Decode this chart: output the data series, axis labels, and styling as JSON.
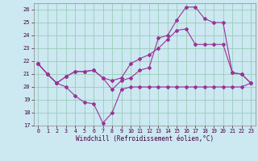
{
  "xlabel": "Windchill (Refroidissement éolien,°C)",
  "background_color": "#cce8f0",
  "grid_color": "#99ccbb",
  "line_color": "#993399",
  "xlim": [
    -0.5,
    23.5
  ],
  "ylim": [
    17,
    26.5
  ],
  "yticks": [
    17,
    18,
    19,
    20,
    21,
    22,
    23,
    24,
    25,
    26
  ],
  "xticks": [
    0,
    1,
    2,
    3,
    4,
    5,
    6,
    7,
    8,
    9,
    10,
    11,
    12,
    13,
    14,
    15,
    16,
    17,
    18,
    19,
    20,
    21,
    22,
    23
  ],
  "series1_x": [
    0,
    1,
    2,
    3,
    4,
    5,
    6,
    7,
    8,
    9,
    10,
    11,
    12,
    13,
    14,
    15,
    16,
    17,
    18,
    19,
    20,
    21,
    22,
    23
  ],
  "series1_y": [
    21.8,
    21.0,
    20.3,
    20.0,
    19.3,
    18.8,
    18.7,
    17.2,
    18.0,
    19.8,
    20.0,
    20.0,
    20.0,
    20.0,
    20.0,
    20.0,
    20.0,
    20.0,
    20.0,
    20.0,
    20.0,
    20.0,
    20.0,
    20.3
  ],
  "series2_x": [
    0,
    1,
    2,
    3,
    4,
    5,
    6,
    7,
    8,
    9,
    10,
    11,
    12,
    13,
    14,
    15,
    16,
    17,
    18,
    19,
    20,
    21,
    22,
    23
  ],
  "series2_y": [
    21.8,
    21.0,
    20.3,
    20.8,
    21.2,
    21.2,
    21.3,
    20.7,
    19.8,
    20.5,
    20.7,
    21.3,
    21.5,
    23.8,
    24.0,
    25.2,
    26.2,
    26.2,
    25.3,
    25.0,
    25.0,
    21.1,
    21.0,
    20.3
  ],
  "series3_x": [
    0,
    1,
    2,
    3,
    4,
    5,
    6,
    7,
    8,
    9,
    10,
    11,
    12,
    13,
    14,
    15,
    16,
    17,
    18,
    19,
    20,
    21,
    22,
    23
  ],
  "series3_y": [
    21.8,
    21.0,
    20.3,
    20.8,
    21.2,
    21.2,
    21.3,
    20.7,
    20.5,
    20.7,
    21.8,
    22.2,
    22.5,
    23.0,
    23.7,
    24.4,
    24.5,
    23.3,
    23.3,
    23.3,
    23.3,
    21.1,
    21.0,
    20.3
  ]
}
